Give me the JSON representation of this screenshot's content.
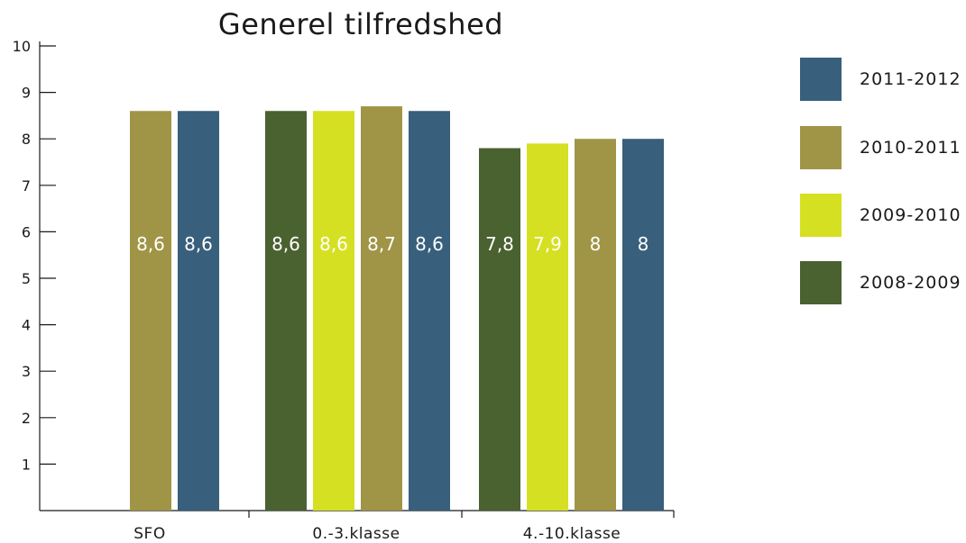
{
  "chart_data": {
    "type": "bar",
    "title": "Generel tilfredshed",
    "xlabel": "",
    "ylabel": "",
    "ylim": [
      0,
      10
    ],
    "yticks": [
      1,
      2,
      3,
      4,
      5,
      6,
      7,
      8,
      9,
      10
    ],
    "categories": [
      "SFO",
      "0.-3.klasse",
      "4.-10.klasse"
    ],
    "series": [
      {
        "name": "2008-2009",
        "color": "#4a6130",
        "values": [
          null,
          8.6,
          7.8
        ],
        "labels": [
          "",
          "8,6",
          "7,8"
        ]
      },
      {
        "name": "2009-2010",
        "color": "#d6e022",
        "values": [
          null,
          8.6,
          7.9
        ],
        "labels": [
          "",
          "8,6",
          "7,9"
        ]
      },
      {
        "name": "2010-2011",
        "color": "#a09546",
        "values": [
          8.6,
          8.7,
          8.0
        ],
        "labels": [
          "8,6",
          "8,7",
          "8"
        ]
      },
      {
        "name": "2011-2012",
        "color": "#385f7b",
        "values": [
          8.6,
          8.6,
          8.0
        ],
        "labels": [
          "8,6",
          "8,6",
          "8"
        ]
      }
    ],
    "legend_order": [
      "2011-2012",
      "2010-2011",
      "2009-2010",
      "2008-2009"
    ],
    "legend_position": "right",
    "grid": false
  }
}
